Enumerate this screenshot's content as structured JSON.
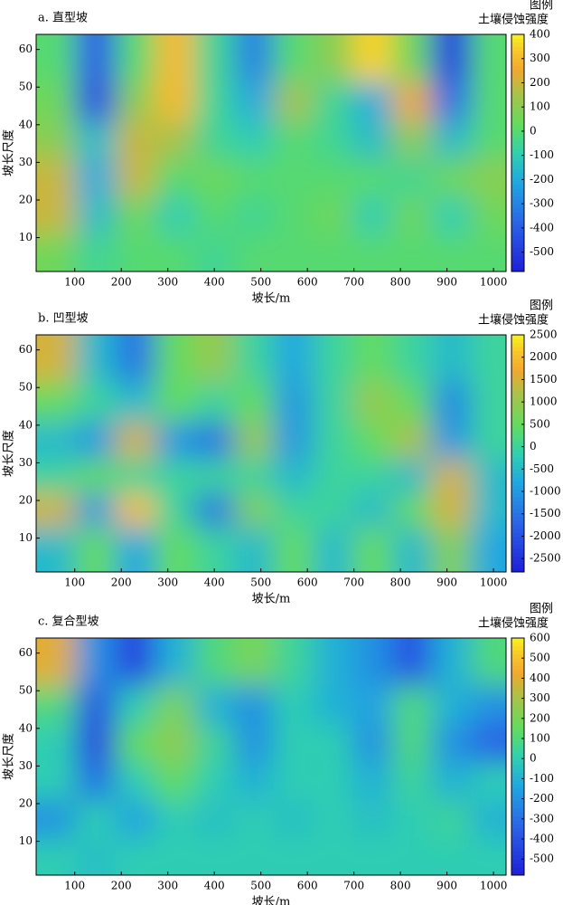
{
  "chart_data": [
    {
      "type": "contour",
      "title": "a. 直型坡",
      "xlabel": "坡长/m",
      "ylabel": "坡长尺度",
      "legend_title": "图例",
      "colorbar_label": "土壤侵蚀强度",
      "x": [
        60,
        145,
        230,
        315,
        400,
        485,
        570,
        655,
        740,
        825,
        910,
        995
      ],
      "y": [
        6,
        16,
        26,
        36,
        46,
        57
      ],
      "z": [
        [
          50,
          -50,
          0,
          0,
          -50,
          0,
          0,
          0,
          0,
          0,
          0,
          0
        ],
        [
          200,
          -150,
          50,
          -100,
          0,
          -50,
          0,
          50,
          -100,
          50,
          -100,
          50
        ],
        [
          200,
          -200,
          200,
          0,
          50,
          0,
          0,
          0,
          0,
          -50,
          50,
          100
        ],
        [
          100,
          -150,
          200,
          150,
          -50,
          -100,
          0,
          -50,
          -150,
          100,
          -150,
          0
        ],
        [
          50,
          -450,
          100,
          300,
          -50,
          -200,
          150,
          -50,
          -200,
          250,
          -350,
          0
        ],
        [
          0,
          -400,
          0,
          300,
          -50,
          -300,
          0,
          100,
          350,
          50,
          -500,
          0
        ]
      ],
      "xlim": [
        17,
        1027
      ],
      "ylim": [
        1,
        64
      ],
      "xticks": [
        100,
        200,
        300,
        400,
        500,
        600,
        700,
        800,
        900,
        1000
      ],
      "yticks": [
        10,
        20,
        30,
        40,
        50,
        60
      ],
      "zlim": [
        -580,
        400
      ],
      "zticks": [
        400,
        300,
        200,
        100,
        0,
        -100,
        -200,
        -300,
        -400,
        -500
      ]
    },
    {
      "type": "contour",
      "title": "b. 凹型坡",
      "xlabel": "坡长/m",
      "ylabel": "坡长尺度",
      "legend_title": "图例",
      "colorbar_label": "土壤侵蚀强度",
      "x": [
        60,
        145,
        230,
        315,
        400,
        485,
        570,
        655,
        740,
        825,
        910,
        995
      ],
      "y": [
        8,
        18,
        26,
        36,
        46,
        57
      ],
      "z": [
        [
          -500,
          500,
          -800,
          500,
          0,
          -500,
          500,
          -500,
          500,
          -500,
          800,
          -800
        ],
        [
          1500,
          -1000,
          2000,
          0,
          -1500,
          800,
          0,
          0,
          -500,
          500,
          1500,
          -500
        ],
        [
          0,
          500,
          0,
          0,
          0,
          0,
          -500,
          0,
          0,
          -500,
          1500,
          -500
        ],
        [
          -500,
          -1000,
          1500,
          -1000,
          -1500,
          1000,
          -1000,
          0,
          500,
          1200,
          -1000,
          0
        ],
        [
          500,
          0,
          -500,
          500,
          0,
          500,
          -1000,
          0,
          1000,
          500,
          -1200,
          0
        ],
        [
          1500,
          -500,
          -1500,
          500,
          1000,
          0,
          -800,
          0,
          500,
          0,
          -500,
          0
        ]
      ],
      "xlim": [
        17,
        1027
      ],
      "ylim": [
        1,
        64
      ],
      "xticks": [
        100,
        200,
        300,
        400,
        500,
        600,
        700,
        800,
        900,
        1000
      ],
      "yticks": [
        10,
        20,
        30,
        40,
        50,
        60
      ],
      "zlim": [
        -2800,
        2500
      ],
      "zticks": [
        2500,
        2000,
        1500,
        1000,
        500,
        0,
        -500,
        -1000,
        -1500,
        -2000,
        -2500
      ]
    },
    {
      "type": "contour",
      "title": "c. 复合型坡",
      "xlabel": "坡长/m",
      "ylabel": "坡长尺度",
      "legend_title": "图例",
      "colorbar_label": "土壤侵蚀强度",
      "x": [
        60,
        145,
        230,
        315,
        400,
        485,
        570,
        655,
        740,
        825,
        910,
        995
      ],
      "y": [
        6,
        16,
        26,
        36,
        46,
        57
      ],
      "z": [
        [
          0,
          -50,
          0,
          0,
          0,
          0,
          0,
          0,
          0,
          0,
          0,
          0
        ],
        [
          -200,
          0,
          -150,
          0,
          -50,
          0,
          -50,
          0,
          -50,
          0,
          50,
          -100
        ],
        [
          0,
          -300,
          0,
          150,
          0,
          -100,
          0,
          0,
          -100,
          50,
          -100,
          0
        ],
        [
          0,
          -450,
          150,
          250,
          50,
          -200,
          0,
          0,
          -200,
          100,
          -200,
          -350
        ],
        [
          100,
          -400,
          0,
          200,
          -100,
          -200,
          0,
          -100,
          -150,
          100,
          -100,
          -200
        ],
        [
          400,
          -200,
          -450,
          -100,
          100,
          200,
          50,
          -100,
          -200,
          -400,
          -100,
          100
        ]
      ],
      "xlim": [
        17,
        1027
      ],
      "ylim": [
        1,
        64
      ],
      "xticks": [
        100,
        200,
        300,
        400,
        500,
        600,
        700,
        800,
        900,
        1000
      ],
      "yticks": [
        10,
        20,
        30,
        40,
        50,
        60
      ],
      "zlim": [
        -580,
        600
      ],
      "zticks": [
        600,
        500,
        400,
        300,
        200,
        100,
        0,
        -100,
        -200,
        -300,
        -400,
        -500
      ]
    }
  ]
}
